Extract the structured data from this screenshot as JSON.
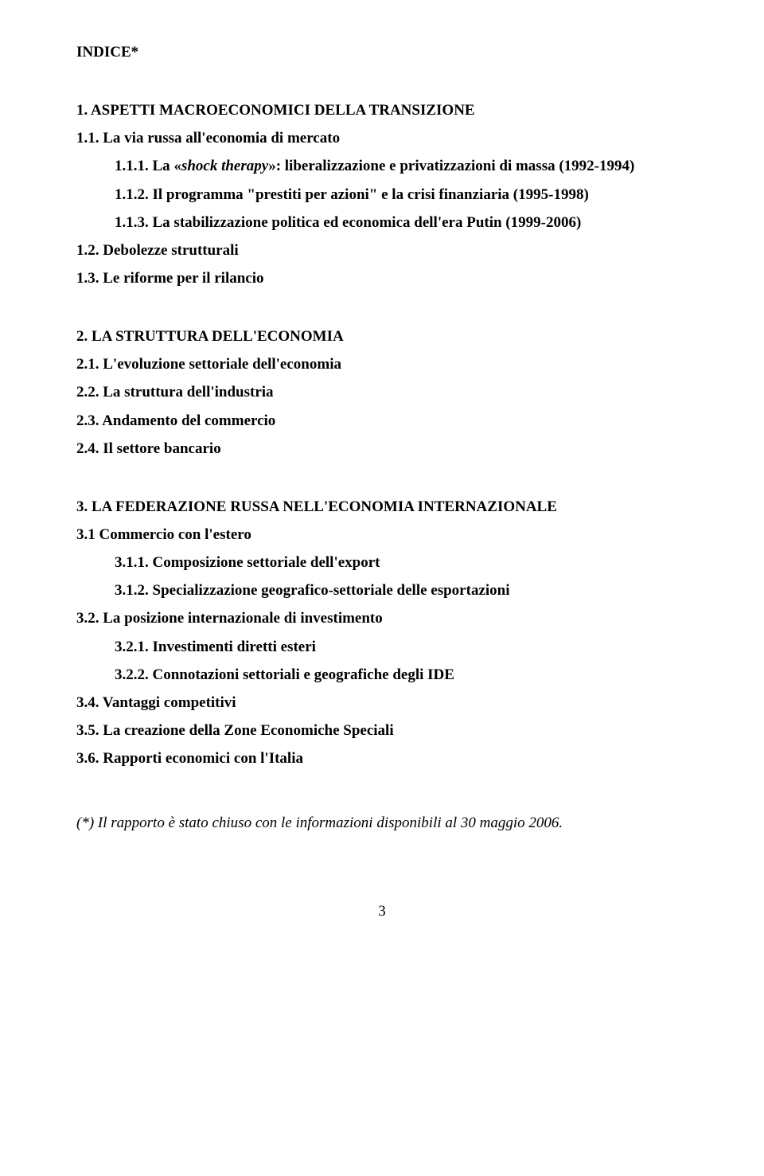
{
  "title": "INDICE*",
  "sections": [
    {
      "head": "1. ASPETTI  MACROECONOMICI  DELLA  TRANSIZIONE",
      "items": [
        {
          "text": "1.1. La via russa all'economia di mercato",
          "indent": 0
        },
        {
          "prefix": "1.1.1. La «",
          "italic": "shock therapy",
          "suffix": "»: liberalizzazione e privatizzazioni di massa (1992-1994)",
          "indent": 1
        },
        {
          "text": "1.1.2. Il programma \"prestiti per azioni\" e la crisi finanziaria (1995-1998)",
          "indent": 1
        },
        {
          "text": "1.1.3. La stabilizzazione politica ed economica dell'era Putin (1999-2006)",
          "indent": 1
        },
        {
          "text": "1.2. Debolezze strutturali",
          "indent": 0
        },
        {
          "text": "1.3. Le riforme per il rilancio",
          "indent": 0
        }
      ]
    },
    {
      "head": "2. LA STRUTTURA DELL'ECONOMIA",
      "items": [
        {
          "text": "2.1. L'evoluzione settoriale dell'economia",
          "indent": 0
        },
        {
          "text": "2.2. La struttura dell'industria",
          "indent": 0
        },
        {
          "text": "2.3. Andamento del commercio",
          "indent": 0
        },
        {
          "text": "2.4. Il settore bancario",
          "indent": 0
        }
      ]
    },
    {
      "head": "3. LA FEDERAZIONE RUSSA NELL'ECONOMIA INTERNAZIONALE",
      "items": [
        {
          "text": "3.1 Commercio con l'estero",
          "indent": 0
        },
        {
          "text": "3.1.1. Composizione settoriale dell'export",
          "indent": 1
        },
        {
          "text": "3.1.2. Specializzazione geografico-settoriale delle esportazioni",
          "indent": 1
        },
        {
          "text": "3.2. La posizione internazionale di investimento",
          "indent": 0
        },
        {
          "text": "3.2.1. Investimenti diretti esteri",
          "indent": 1
        },
        {
          "text": "3.2.2. Connotazioni settoriali e geografiche degli IDE",
          "indent": 1
        },
        {
          "text": "3.4. Vantaggi competitivi",
          "indent": 0
        },
        {
          "text": "3.5. La creazione della Zone Economiche Speciali",
          "indent": 0
        },
        {
          "text": "3.6. Rapporti economici con l'Italia",
          "indent": 0
        }
      ]
    }
  ],
  "footnote": "(*) Il rapporto è stato chiuso con le informazioni disponibili al 30 maggio 2006.",
  "page_number": "3",
  "colors": {
    "text": "#000000",
    "background": "#ffffff"
  },
  "typography": {
    "family": "Times New Roman",
    "base_pt": 14,
    "line_height": 1.85
  }
}
